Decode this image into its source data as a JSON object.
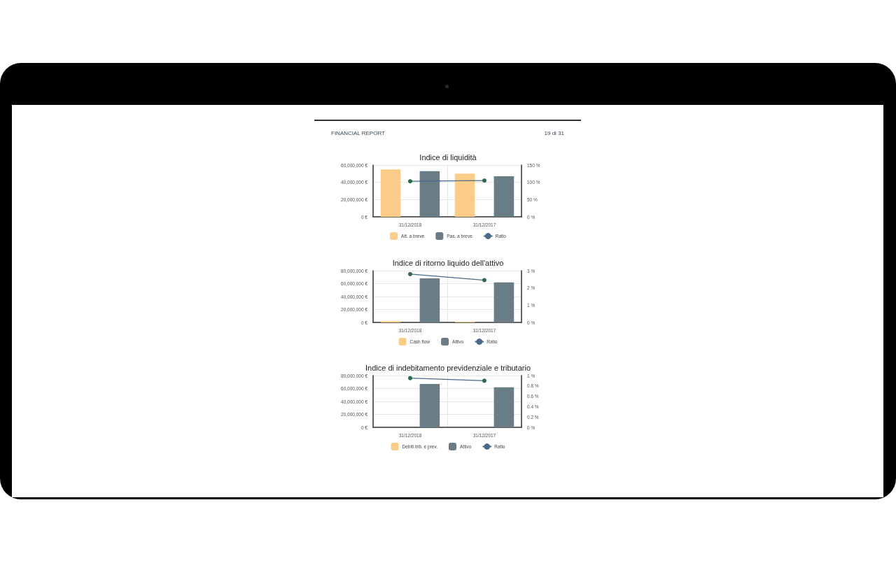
{
  "chart_data": [
    {
      "type": "bar",
      "title": "Indice di liquidità",
      "annotations": [
        "FINANCIAL REPORT",
        "19 di 31"
      ],
      "categories": [
        "31/12/2018",
        "31/12/2017"
      ],
      "series": [
        {
          "name": "Att. a breve",
          "color": "#fbcd89",
          "values": [
            55000000,
            50000000
          ]
        },
        {
          "name": "Pas. a breve",
          "color": "#6a7d87",
          "values": [
            53000000,
            47000000
          ]
        },
        {
          "name": "Ratio",
          "type": "line",
          "axis": "y2",
          "color": "#4a6a8c",
          "colors": [
            "#2c6b46",
            "#2c6b46"
          ],
          "values": [
            103,
            105
          ]
        }
      ],
      "ylim": [
        0,
        60000000
      ],
      "yticks": [
        {
          "value": 0,
          "label": "0 €"
        },
        {
          "value": 20000000,
          "label": "20,000,000 €"
        },
        {
          "value": 40000000,
          "label": "40,000,000 €"
        },
        {
          "value": 60000000,
          "label": "60,000,000 €"
        }
      ],
      "y2lim": [
        0,
        150
      ],
      "y2ticks": [
        {
          "value": 0,
          "label": "0 %"
        },
        {
          "value": 50,
          "label": "50 %"
        },
        {
          "value": 100,
          "label": "100 %"
        },
        {
          "value": 150,
          "label": "150 %"
        }
      ],
      "grid": true,
      "legend": "bottom",
      "marker": "circle"
    },
    {
      "type": "bar",
      "title": "Indice di ritorno liquido dell'attivo",
      "categories": [
        "31/12/2018",
        "31/12/2017"
      ],
      "series": [
        {
          "name": "Cash flow",
          "color": "#fbcd89",
          "values": [
            2000000,
            1000000
          ]
        },
        {
          "name": "Attivo",
          "color": "#6a7d87",
          "values": [
            68000000,
            62000000
          ]
        },
        {
          "name": "Ratio",
          "type": "line",
          "axis": "y2",
          "color": "#4a6a8c",
          "colors": [
            "#2c6b46",
            "#2c6b46"
          ],
          "values": [
            2.8,
            2.45
          ]
        }
      ],
      "ylim": [
        0,
        80000000
      ],
      "yticks": [
        {
          "value": 0,
          "label": "0 €"
        },
        {
          "value": 20000000,
          "label": "20,000,000 €"
        },
        {
          "value": 40000000,
          "label": "40,000,000 €"
        },
        {
          "value": 60000000,
          "label": "60,000,000 €"
        },
        {
          "value": 80000000,
          "label": "80,000,000 €"
        }
      ],
      "y2lim": [
        0,
        3
      ],
      "y2ticks": [
        {
          "value": 0,
          "label": "0 %"
        },
        {
          "value": 1,
          "label": "1 %"
        },
        {
          "value": 2,
          "label": "2 %"
        },
        {
          "value": 3,
          "label": "3 %"
        }
      ],
      "grid": true,
      "legend": "bottom",
      "marker": "circle"
    },
    {
      "type": "bar",
      "title": "Indice di indebitamento previdenziale e tributario",
      "categories": [
        "31/12/2018",
        "31/12/2017"
      ],
      "series": [
        {
          "name": "Debiti trib. e prev.",
          "color": "#fbcd89",
          "values": [
            null,
            null
          ]
        },
        {
          "name": "Attivo",
          "color": "#6a7d87",
          "values": [
            67000000,
            62000000
          ]
        },
        {
          "name": "Ratio",
          "type": "line",
          "axis": "y2",
          "color": "#4a6a8c",
          "colors": [
            "#2c6b46",
            "#2c6b46"
          ],
          "values": [
            0.95,
            0.9
          ]
        }
      ],
      "ylim": [
        0,
        80000000
      ],
      "yticks": [
        {
          "value": 0,
          "label": "0 €"
        },
        {
          "value": 20000000,
          "label": "20,000,000 €"
        },
        {
          "value": 40000000,
          "label": "40,000,000 €"
        },
        {
          "value": 60000000,
          "label": "60,000,000 €"
        },
        {
          "value": 80000000,
          "label": "80,000,000 €"
        }
      ],
      "y2lim": [
        0,
        1
      ],
      "y2ticks": [
        {
          "value": 0,
          "label": "0 %"
        },
        {
          "value": 0.2,
          "label": "0.2 %"
        },
        {
          "value": 0.4,
          "label": "0.4 %"
        },
        {
          "value": 0.6,
          "label": "0.6 %"
        },
        {
          "value": 0.8,
          "label": "0.8 %"
        },
        {
          "value": 1,
          "label": "1 %"
        }
      ],
      "grid": true,
      "legend": "bottom",
      "marker": "circle"
    }
  ]
}
